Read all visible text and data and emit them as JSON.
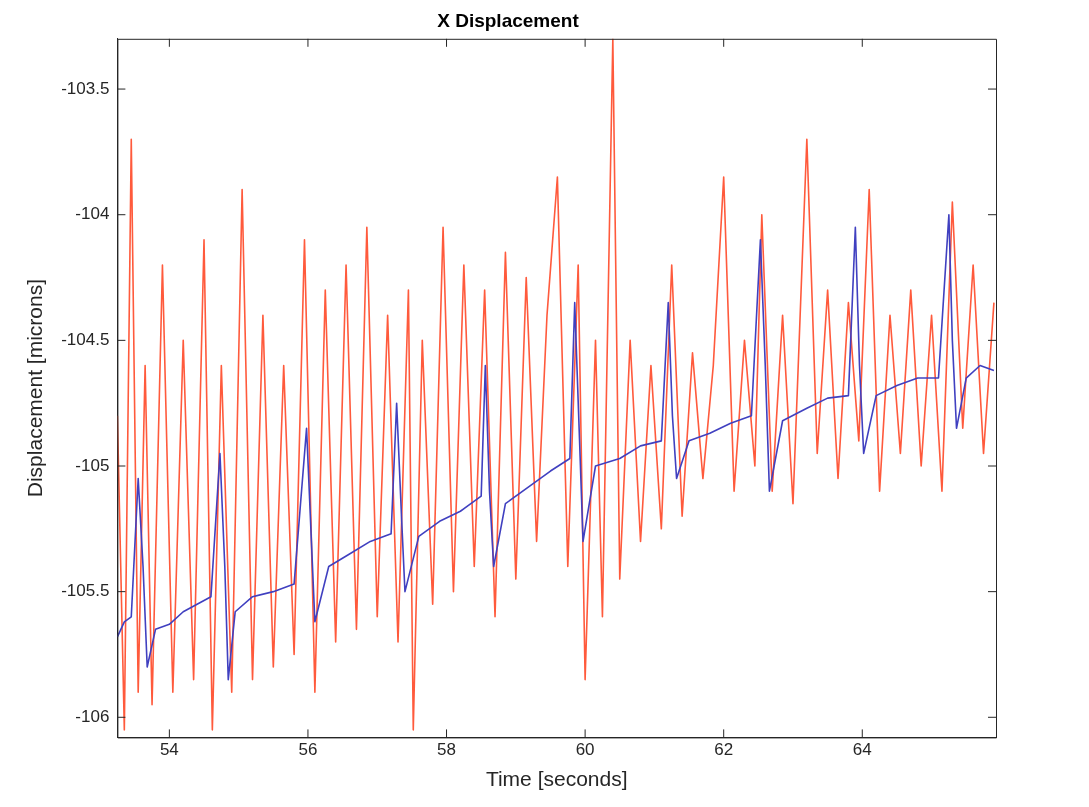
{
  "chart_data": {
    "type": "line",
    "title": "X Displacement",
    "xlabel": "Time [seconds]",
    "ylabel": "Displacement [microns]",
    "xlim": [
      53.25,
      65.93
    ],
    "xticks": [
      54,
      56,
      58,
      60,
      62,
      64
    ],
    "ylim": [
      -106.08,
      -103.3
    ],
    "yticks": [
      -106,
      -105.5,
      -105,
      -104.5,
      -104,
      -103.5
    ],
    "grid": false,
    "legend": false,
    "marker": "none",
    "series": [
      {
        "color": "#ff5a3c",
        "x": [
          53.25,
          53.35,
          53.45,
          53.55,
          53.65,
          53.75,
          53.9,
          54.05,
          54.2,
          54.35,
          54.5,
          54.62,
          54.75,
          54.9,
          55.05,
          55.2,
          55.35,
          55.5,
          55.65,
          55.8,
          55.95,
          56.1,
          56.25,
          56.4,
          56.55,
          56.7,
          56.85,
          57.0,
          57.15,
          57.3,
          57.45,
          57.52,
          57.65,
          57.8,
          57.95,
          58.1,
          58.25,
          58.4,
          58.55,
          58.7,
          58.85,
          59.0,
          59.15,
          59.3,
          59.45,
          59.6,
          59.75,
          59.9,
          60.0,
          60.15,
          60.25,
          60.4,
          60.5,
          60.65,
          60.8,
          60.95,
          61.1,
          61.25,
          61.4,
          61.55,
          61.7,
          61.85,
          62.0,
          62.15,
          62.3,
          62.45,
          62.55,
          62.7,
          62.85,
          63.0,
          63.2,
          63.35,
          63.5,
          63.65,
          63.8,
          63.95,
          64.1,
          64.25,
          64.4,
          64.55,
          64.7,
          64.85,
          65.0,
          65.15,
          65.3,
          65.45,
          65.6,
          65.75,
          65.9
        ],
        "values": [
          -104.8,
          -106.05,
          -103.7,
          -105.9,
          -104.6,
          -105.95,
          -104.2,
          -105.9,
          -104.5,
          -105.85,
          -104.1,
          -106.05,
          -104.6,
          -105.9,
          -103.9,
          -105.85,
          -104.4,
          -105.8,
          -104.6,
          -105.75,
          -104.1,
          -105.9,
          -104.3,
          -105.7,
          -104.2,
          -105.65,
          -104.05,
          -105.6,
          -104.4,
          -105.7,
          -104.3,
          -106.05,
          -104.5,
          -105.55,
          -104.05,
          -105.5,
          -104.2,
          -105.4,
          -104.3,
          -105.6,
          -104.15,
          -105.45,
          -104.25,
          -105.3,
          -104.4,
          -103.85,
          -105.4,
          -104.2,
          -105.85,
          -104.5,
          -105.6,
          -103.3,
          -105.45,
          -104.5,
          -105.3,
          -104.6,
          -105.25,
          -104.2,
          -105.2,
          -104.55,
          -105.05,
          -104.6,
          -103.85,
          -105.1,
          -104.5,
          -105.0,
          -104.0,
          -105.1,
          -104.4,
          -105.15,
          -103.7,
          -104.95,
          -104.3,
          -105.05,
          -104.35,
          -104.9,
          -103.9,
          -105.1,
          -104.4,
          -104.95,
          -104.3,
          -105.0,
          -104.4,
          -105.1,
          -103.95,
          -104.85,
          -104.2,
          -104.95,
          -104.35
        ]
      },
      {
        "color": "#4040c0",
        "x": [
          53.25,
          53.35,
          53.45,
          53.55,
          53.62,
          53.68,
          53.8,
          54.0,
          54.2,
          54.4,
          54.6,
          54.73,
          54.8,
          54.85,
          54.95,
          55.2,
          55.5,
          55.8,
          55.98,
          56.05,
          56.1,
          56.3,
          56.6,
          56.9,
          57.2,
          57.28,
          57.35,
          57.4,
          57.6,
          57.9,
          58.2,
          58.5,
          58.56,
          58.62,
          58.68,
          58.85,
          59.2,
          59.5,
          59.78,
          59.85,
          59.92,
          59.97,
          60.15,
          60.5,
          60.8,
          61.1,
          61.2,
          61.26,
          61.32,
          61.5,
          61.8,
          62.1,
          62.4,
          62.53,
          62.6,
          62.66,
          62.85,
          63.2,
          63.5,
          63.8,
          63.9,
          63.96,
          64.02,
          64.2,
          64.5,
          64.8,
          65.1,
          65.25,
          65.3,
          65.36,
          65.5,
          65.7,
          65.9
        ],
        "values": [
          -105.68,
          -105.62,
          -105.6,
          -105.05,
          -105.4,
          -105.8,
          -105.65,
          -105.63,
          -105.58,
          -105.55,
          -105.52,
          -104.95,
          -105.4,
          -105.85,
          -105.58,
          -105.52,
          -105.5,
          -105.47,
          -104.85,
          -105.3,
          -105.62,
          -105.4,
          -105.35,
          -105.3,
          -105.27,
          -104.75,
          -105.2,
          -105.5,
          -105.28,
          -105.22,
          -105.18,
          -105.12,
          -104.6,
          -105.1,
          -105.4,
          -105.15,
          -105.08,
          -105.02,
          -104.97,
          -104.35,
          -104.9,
          -105.3,
          -105.0,
          -104.97,
          -104.92,
          -104.9,
          -104.35,
          -104.8,
          -105.05,
          -104.9,
          -104.87,
          -104.83,
          -104.8,
          -104.1,
          -104.6,
          -105.1,
          -104.82,
          -104.77,
          -104.73,
          -104.72,
          -104.05,
          -104.6,
          -104.95,
          -104.72,
          -104.68,
          -104.65,
          -104.65,
          -104.0,
          -104.5,
          -104.85,
          -104.65,
          -104.6,
          -104.62
        ]
      }
    ]
  }
}
